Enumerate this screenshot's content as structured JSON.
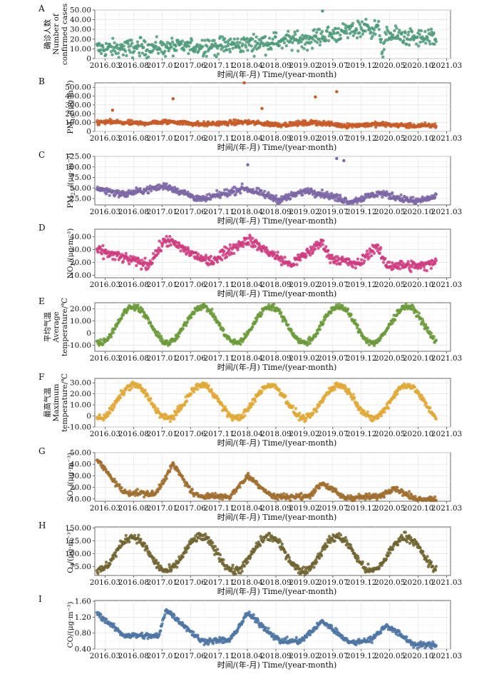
{
  "figure": {
    "x_tick_labels": [
      "2016.03",
      "2016.08",
      "2017.01",
      "2017.06",
      "2017.11",
      "2018.04",
      "2018.09",
      "2019.02",
      "2019.07",
      "2019.12",
      "2020.05",
      "2020.10",
      "2021.03"
    ],
    "x_axis_label": "时间/(年-月) Time/(year-month)",
    "point_size": 2.2
  },
  "chart_data": [
    {
      "panel": "A",
      "type": "scatter",
      "ylabel": [
        "确诊人数",
        "Number of",
        "confirmed cases"
      ],
      "ylabel_cn_rotated": true,
      "ylim": [
        0,
        50
      ],
      "yticks": [
        "0",
        "10.00",
        "20.00",
        "30.00",
        "40.00",
        "50.00"
      ],
      "ytick_values": [
        0,
        10,
        20,
        30,
        40,
        50
      ],
      "color": "#4e9a7a",
      "series_id": "confirmed",
      "trend": [
        [
          0,
          10
        ],
        [
          0.35,
          13
        ],
        [
          0.6,
          20
        ],
        [
          0.76,
          32
        ],
        [
          0.8,
          30
        ],
        [
          0.81,
          5
        ],
        [
          0.82,
          25
        ],
        [
          0.87,
          22
        ],
        [
          1.0,
          18
        ]
      ],
      "noise": 9,
      "outliers": [
        [
          0.64,
          49
        ]
      ]
    },
    {
      "panel": "B",
      "type": "scatter",
      "ylabel": [
        "PM",
        "10",
        "/(μg·m⁻³)"
      ],
      "ylim": [
        0,
        550
      ],
      "yticks": [
        "0",
        "100.00",
        "200.00",
        "300.00",
        "400.00",
        "500.00"
      ],
      "ytick_values": [
        0,
        100,
        200,
        300,
        400,
        500
      ],
      "color": "#c85a26",
      "series_id": "pm10",
      "trend": [
        [
          0,
          100
        ],
        [
          0.05,
          105
        ],
        [
          0.12,
          90
        ],
        [
          0.22,
          110
        ],
        [
          0.3,
          80
        ],
        [
          0.42,
          105
        ],
        [
          0.52,
          75
        ],
        [
          0.62,
          100
        ],
        [
          0.7,
          65
        ],
        [
          0.8,
          80
        ],
        [
          0.9,
          62
        ],
        [
          1.0,
          70
        ]
      ],
      "noise": 25,
      "outliers": [
        [
          0.05,
          240
        ],
        [
          0.22,
          370
        ],
        [
          0.42,
          550
        ],
        [
          0.47,
          260
        ],
        [
          0.62,
          390
        ],
        [
          0.68,
          450
        ]
      ]
    },
    {
      "panel": "C",
      "type": "scatter",
      "ylabel": [
        "PM",
        "2.5",
        "/(μg·m⁻³)"
      ],
      "ylim": [
        10,
        125
      ],
      "yticks": [
        "25.00",
        "50.00",
        "75.00",
        "100.00",
        "125.00"
      ],
      "ytick_values": [
        25,
        50,
        75,
        100,
        125
      ],
      "color": "#7b66a6",
      "series_id": "pm25",
      "trend": [
        [
          0,
          50
        ],
        [
          0.08,
          35
        ],
        [
          0.2,
          55
        ],
        [
          0.3,
          22
        ],
        [
          0.42,
          50
        ],
        [
          0.52,
          22
        ],
        [
          0.6,
          45
        ],
        [
          0.72,
          18
        ],
        [
          0.8,
          38
        ],
        [
          0.9,
          18
        ],
        [
          1.0,
          37
        ]
      ],
      "noise": 8,
      "outliers": [
        [
          0.43,
          105
        ],
        [
          0.68,
          120
        ],
        [
          0.7,
          115
        ]
      ]
    },
    {
      "panel": "D",
      "type": "scatter",
      "ylabel": [
        "NO",
        "2",
        "/(μg·m⁻³)"
      ],
      "ylim": [
        8,
        46
      ],
      "yticks": [
        "10.00",
        "20.00",
        "30.00",
        "40.00"
      ],
      "ytick_values": [
        10,
        20,
        30,
        40
      ],
      "color": "#cf3b7f",
      "series_id": "no2",
      "trend": [
        [
          0,
          30
        ],
        [
          0.15,
          18
        ],
        [
          0.2,
          38
        ],
        [
          0.32,
          20
        ],
        [
          0.43,
          38
        ],
        [
          0.55,
          18
        ],
        [
          0.64,
          36
        ],
        [
          0.66,
          24
        ],
        [
          0.74,
          18
        ],
        [
          0.79,
          33
        ],
        [
          0.82,
          18
        ],
        [
          0.93,
          17
        ],
        [
          1.0,
          30
        ]
      ],
      "noise": 4,
      "outliers": []
    },
    {
      "panel": "E",
      "type": "scatter",
      "ylabel": [
        "平均气温",
        "Average",
        "temperature/℃"
      ],
      "ylabel_cn_rotated": true,
      "ylim": [
        -15,
        25
      ],
      "yticks": [
        "-10.00",
        "0",
        "10.00",
        "20.00"
      ],
      "ytick_values": [
        -10,
        0,
        10,
        20
      ],
      "color": "#6b9a3a",
      "series_id": "avg_temp",
      "sine": {
        "mean": 7,
        "amp": 15,
        "phase": -0.02
      },
      "noise": 2.5,
      "outliers": []
    },
    {
      "panel": "F",
      "type": "scatter",
      "ylabel": [
        "最高气温",
        "Maximum",
        "temperature/℃"
      ],
      "ylabel_cn_rotated": true,
      "ylim": [
        -10,
        34
      ],
      "yticks": [
        "-10.00",
        "0",
        "10.00",
        "20.00",
        "30.00"
      ],
      "ytick_values": [
        -10,
        0,
        10,
        20,
        30
      ],
      "color": "#e0a835",
      "series_id": "max_temp",
      "sine": {
        "mean": 13,
        "amp": 15,
        "phase": -0.02
      },
      "noise": 3,
      "outliers": []
    },
    {
      "panel": "G",
      "type": "scatter",
      "ylabel": [
        "SO",
        "2",
        "/(μg·m⁻³)"
      ],
      "ylim": [
        8,
        50
      ],
      "yticks": [
        "10.00",
        "20.00",
        "30.00",
        "40.00",
        "50.00"
      ],
      "ytick_values": [
        10,
        20,
        30,
        40,
        50
      ],
      "color": "#a06f2f",
      "series_id": "so2",
      "trend": [
        [
          0,
          46
        ],
        [
          0.08,
          16
        ],
        [
          0.17,
          14
        ],
        [
          0.22,
          40
        ],
        [
          0.28,
          13
        ],
        [
          0.38,
          12
        ],
        [
          0.43,
          30
        ],
        [
          0.5,
          12
        ],
        [
          0.6,
          12
        ],
        [
          0.64,
          24
        ],
        [
          0.7,
          11
        ],
        [
          0.8,
          12
        ],
        [
          0.84,
          20
        ],
        [
          0.9,
          10
        ],
        [
          0.96,
          10
        ],
        [
          1.0,
          20
        ]
      ],
      "noise": 2.5,
      "outliers": []
    },
    {
      "panel": "H",
      "type": "scatter",
      "ylabel": [
        "O",
        "3",
        "/(μg·m⁻³)"
      ],
      "ylim": [
        58,
        152
      ],
      "yticks": [
        "75.00",
        "100.00",
        "125.00",
        "150.00"
      ],
      "ytick_values": [
        75,
        100,
        125,
        150
      ],
      "color": "#6e6430",
      "series_id": "o3",
      "sine": {
        "mean": 100,
        "amp": 33,
        "phase": 0.0
      },
      "noise": 8,
      "outliers": []
    },
    {
      "panel": "I",
      "type": "scatter",
      "ylabel": [
        "CO/(μg·m⁻³)"
      ],
      "ylim": [
        0.4,
        1.62
      ],
      "yticks": [
        "0.40",
        "0.80",
        "1.20",
        "1.60"
      ],
      "ytick_values": [
        0.4,
        0.8,
        1.2,
        1.6
      ],
      "color": "#4d76a3",
      "series_id": "co",
      "trend": [
        [
          0,
          1.35
        ],
        [
          0.08,
          0.75
        ],
        [
          0.18,
          0.72
        ],
        [
          0.2,
          1.4
        ],
        [
          0.3,
          0.6
        ],
        [
          0.38,
          0.62
        ],
        [
          0.43,
          1.3
        ],
        [
          0.52,
          0.6
        ],
        [
          0.58,
          0.6
        ],
        [
          0.64,
          1.1
        ],
        [
          0.72,
          0.55
        ],
        [
          0.78,
          0.65
        ],
        [
          0.82,
          1.0
        ],
        [
          0.9,
          0.5
        ],
        [
          0.96,
          0.5
        ],
        [
          1.0,
          0.95
        ]
      ],
      "noise": 0.07,
      "outliers": []
    }
  ]
}
